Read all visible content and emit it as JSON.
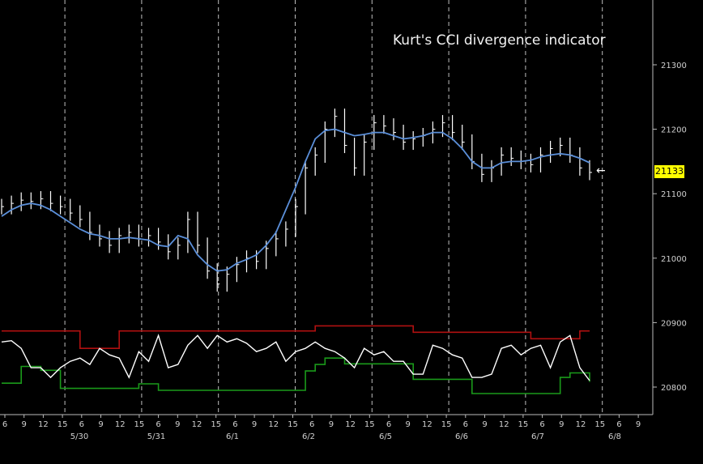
{
  "chart_data": {
    "type": "line",
    "title": "Kurt's CCI divergence indicator",
    "last_price_label": "21133",
    "colors": {
      "background": "#000000",
      "price_bars": "#ffffff",
      "moving_average": "#5b8fd9",
      "upper_band": "#b01010",
      "lower_band": "#1a9a1a",
      "cci": "#ffffff",
      "grid": "#bfbfbf",
      "badge": "#ffff00"
    },
    "y_axis": {
      "ticks": [
        "21300",
        "21200",
        "21100",
        "21000",
        "20900",
        "20800"
      ],
      "ylim": [
        20770,
        21380
      ]
    },
    "x_axis": {
      "hour_ticks": [
        "6",
        "9",
        "12",
        "15",
        "6",
        "9",
        "12",
        "15",
        "6",
        "9",
        "12",
        "15",
        "6",
        "9",
        "12",
        "15",
        "6",
        "9",
        "12",
        "15",
        "6",
        "9",
        "12",
        "15",
        "6",
        "9",
        "12",
        "15",
        "6",
        "9",
        "12",
        "15",
        "6",
        "9"
      ],
      "date_labels": [
        "5/30",
        "5/31",
        "6/1",
        "6/2",
        "6/5",
        "6/6",
        "6/7",
        "6/8"
      ]
    },
    "price_close": [
      21080,
      21085,
      21090,
      21088,
      21092,
      21085,
      21080,
      21070,
      21060,
      21040,
      21030,
      21020,
      21035,
      21040,
      21030,
      21035,
      21025,
      21010,
      21020,
      21060,
      21020,
      20980,
      20960,
      20975,
      20990,
      21000,
      20995,
      21015,
      21030,
      21045,
      21080,
      21140,
      21160,
      21200,
      21220,
      21175,
      21140,
      21180,
      21210,
      21205,
      21195,
      21180,
      21185,
      21190,
      21200,
      21210,
      21195,
      21180,
      21150,
      21130,
      21140,
      21160,
      21155,
      21150,
      21145,
      21160,
      21170,
      21175,
      21160,
      21140,
      21133
    ],
    "ma": [
      21065,
      21075,
      21082,
      21085,
      21082,
      21075,
      21065,
      21055,
      21045,
      21038,
      21035,
      21030,
      21030,
      21032,
      21030,
      21028,
      21020,
      21018,
      21035,
      21030,
      21005,
      20990,
      20980,
      20982,
      20992,
      20998,
      21005,
      21020,
      21040,
      21075,
      21110,
      21150,
      21185,
      21198,
      21200,
      21195,
      21190,
      21192,
      21195,
      21195,
      21190,
      21185,
      21187,
      21190,
      21195,
      21195,
      21185,
      21170,
      21150,
      21140,
      21140,
      21148,
      21150,
      21150,
      21152,
      21157,
      21160,
      21162,
      21160,
      21155,
      21148
    ],
    "upper_band": [
      20887,
      20887,
      20887,
      20887,
      20887,
      20887,
      20887,
      20887,
      20860,
      20860,
      20860,
      20860,
      20887,
      20887,
      20887,
      20887,
      20887,
      20887,
      20887,
      20887,
      20887,
      20887,
      20887,
      20887,
      20887,
      20887,
      20887,
      20887,
      20887,
      20887,
      20887,
      20887,
      20895,
      20895,
      20895,
      20895,
      20895,
      20895,
      20895,
      20895,
      20895,
      20895,
      20885,
      20885,
      20885,
      20885,
      20885,
      20885,
      20885,
      20885,
      20885,
      20885,
      20885,
      20885,
      20875,
      20875,
      20875,
      20875,
      20875,
      20887,
      20887
    ],
    "lower_band": [
      20806,
      20806,
      20832,
      20832,
      20826,
      20826,
      20798,
      20798,
      20798,
      20798,
      20798,
      20798,
      20798,
      20798,
      20805,
      20805,
      20795,
      20795,
      20795,
      20795,
      20795,
      20795,
      20795,
      20795,
      20795,
      20795,
      20795,
      20795,
      20795,
      20795,
      20795,
      20825,
      20835,
      20845,
      20845,
      20836,
      20836,
      20836,
      20836,
      20836,
      20836,
      20836,
      20812,
      20812,
      20812,
      20812,
      20812,
      20812,
      20790,
      20790,
      20790,
      20790,
      20790,
      20790,
      20790,
      20790,
      20790,
      20815,
      20822,
      20822,
      20808
    ],
    "cci": [
      20870,
      20872,
      20860,
      20830,
      20830,
      20815,
      20830,
      20840,
      20845,
      20835,
      20860,
      20850,
      20845,
      20815,
      20855,
      20840,
      20880,
      20830,
      20835,
      20865,
      20880,
      20860,
      20880,
      20870,
      20875,
      20868,
      20855,
      20860,
      20870,
      20840,
      20855,
      20860,
      20870,
      20860,
      20855,
      20845,
      20830,
      20860,
      20850,
      20855,
      20840,
      20840,
      20820,
      20820,
      20865,
      20860,
      20850,
      20845,
      20815,
      20815,
      20820,
      20860,
      20865,
      20850,
      20860,
      20865,
      20830,
      20870,
      20880,
      20830,
      20810
    ]
  }
}
